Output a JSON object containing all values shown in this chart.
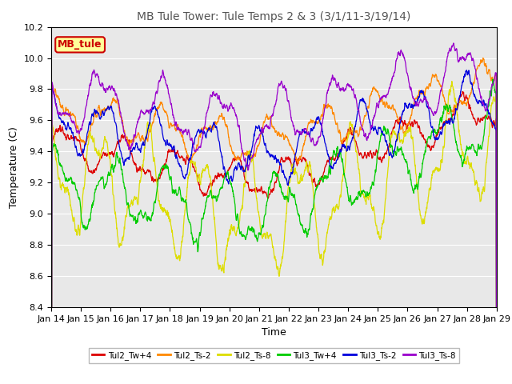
{
  "title": "MB Tule Tower: Tule Temps 2 & 3 (3/1/11-3/19/14)",
  "xlabel": "Time",
  "ylabel": "Temperature (C)",
  "ylim": [
    8.4,
    10.2
  ],
  "yticks": [
    8.4,
    8.6,
    8.8,
    9.0,
    9.2,
    9.4,
    9.6,
    9.8,
    10.0,
    10.2
  ],
  "xlim": [
    0,
    15
  ],
  "xtick_labels": [
    "Jan 14",
    "Jan 15",
    "Jan 16",
    "Jan 17",
    "Jan 18",
    "Jan 19",
    "Jan 20",
    "Jan 21",
    "Jan 22",
    "Jan 23",
    "Jan 24",
    "Jan 25",
    "Jan 26",
    "Jan 27",
    "Jan 28",
    "Jan 29"
  ],
  "series_colors": [
    "#dd0000",
    "#ff8800",
    "#dddd00",
    "#00cc00",
    "#0000dd",
    "#9900cc"
  ],
  "series_labels": [
    "Tul2_Tw+4",
    "Tul2_Ts-2",
    "Tul2_Ts-8",
    "Tul3_Tw+4",
    "Tul3_Ts-2",
    "Tul3_Ts-8"
  ],
  "legend_box_facecolor": "#ffff99",
  "legend_box_edge": "#cc0000",
  "legend_label": "MB_tule",
  "axes_facecolor": "#e8e8e8",
  "fig_facecolor": "#ffffff",
  "grid_color": "#ffffff",
  "n_points": 2000
}
